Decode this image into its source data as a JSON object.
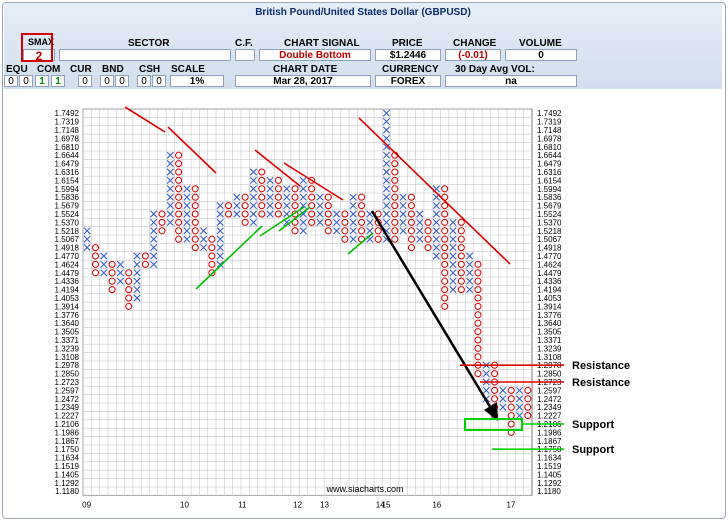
{
  "header": {
    "title": "British Pound/United States Dollar (GBPUSD)",
    "row1": {
      "smax": "SMAX",
      "sector": "SECTOR",
      "cf": "C.F.",
      "chart_signal": "CHART SIGNAL",
      "price": "PRICE",
      "change": "CHANGE",
      "volume": "VOLUME"
    },
    "row2": {
      "smax": "2",
      "sector": "",
      "chart_signal": "Double Bottom",
      "price": "$1.2446",
      "change": "(-0.01)",
      "volume": "0"
    },
    "row3": {
      "equ": "EQU",
      "com": "COM",
      "cur": "CUR",
      "bnd": "BND",
      "csh": "CSH",
      "scale": "SCALE",
      "chart_date": "CHART DATE",
      "currency": "CURRENCY",
      "avg_vol": "30 Day Avg VOL:"
    },
    "row4": {
      "equ": [
        "0",
        "0"
      ],
      "com": [
        "1",
        "1"
      ],
      "cur": "0",
      "bnd": [
        "0",
        "0"
      ],
      "csh": [
        "0",
        "0"
      ],
      "scale": "1%",
      "chart_date": "Mar 28, 2017",
      "currency": "FOREX",
      "avg_vol": "na"
    }
  },
  "chart_data": {
    "type": "point-and-figure",
    "title": "British Pound/United States Dollar (GBPUSD)",
    "scale": "1%",
    "y_levels": [
      "1.7492",
      "1.7319",
      "1.7148",
      "1.6978",
      "1.6810",
      "1.6644",
      "1.6479",
      "1.6316",
      "1.6154",
      "1.5994",
      "1.5836",
      "1.5679",
      "1.5524",
      "1.5370",
      "1.5218",
      "1.5067",
      "1.4918",
      "1.4770",
      "1.4624",
      "1.4479",
      "1.4336",
      "1.4194",
      "1.4053",
      "1.3914",
      "1.3776",
      "1.3640",
      "1.3505",
      "1.3371",
      "1.3239",
      "1.3108",
      "1.2978",
      "1.2850",
      "1.2723",
      "1.2597",
      "1.2472",
      "1.2349",
      "1.2227",
      "1.2106",
      "1.1986",
      "1.1867",
      "1.1750",
      "1.1634",
      "1.1519",
      "1.1405",
      "1.1292",
      "1.1180"
    ],
    "x_labels": [
      "09",
      "10",
      "11",
      "12",
      "13",
      "14",
      "15",
      "16",
      "17"
    ],
    "columns": [
      {
        "type": "X",
        "from": 1.4918,
        "to": 1.5218
      },
      {
        "type": "O",
        "from": 1.4479,
        "to": 1.4918
      },
      {
        "type": "X",
        "from": 1.4479,
        "to": 1.477
      },
      {
        "type": "O",
        "from": 1.4194,
        "to": 1.4624
      },
      {
        "type": "X",
        "from": 1.4336,
        "to": 1.4624
      },
      {
        "type": "O",
        "from": 1.3914,
        "to": 1.4479
      },
      {
        "type": "X",
        "from": 1.4053,
        "to": 1.477
      },
      {
        "type": "O",
        "from": 1.4624,
        "to": 1.477
      },
      {
        "type": "X",
        "from": 1.4624,
        "to": 1.5524
      },
      {
        "type": "O",
        "from": 1.5218,
        "to": 1.5524
      },
      {
        "type": "X",
        "from": 1.537,
        "to": 1.6644
      },
      {
        "type": "O",
        "from": 1.5067,
        "to": 1.6644
      },
      {
        "type": "X",
        "from": 1.5067,
        "to": 1.5994
      },
      {
        "type": "O",
        "from": 1.4918,
        "to": 1.5994
      },
      {
        "type": "X",
        "from": 1.4918,
        "to": 1.5218
      },
      {
        "type": "O",
        "from": 1.4479,
        "to": 1.5067
      },
      {
        "type": "X",
        "from": 1.4624,
        "to": 1.5679
      },
      {
        "type": "O",
        "from": 1.5524,
        "to": 1.5679
      },
      {
        "type": "X",
        "from": 1.5524,
        "to": 1.5836
      },
      {
        "type": "O",
        "from": 1.537,
        "to": 1.5836
      },
      {
        "type": "X",
        "from": 1.537,
        "to": 1.6316
      },
      {
        "type": "O",
        "from": 1.5524,
        "to": 1.6316
      },
      {
        "type": "X",
        "from": 1.5524,
        "to": 1.6154
      },
      {
        "type": "O",
        "from": 1.5524,
        "to": 1.6154
      },
      {
        "type": "X",
        "from": 1.537,
        "to": 1.5994
      },
      {
        "type": "O",
        "from": 1.5218,
        "to": 1.5994
      },
      {
        "type": "X",
        "from": 1.5218,
        "to": 1.6154
      },
      {
        "type": "O",
        "from": 1.537,
        "to": 1.6154
      },
      {
        "type": "X",
        "from": 1.537,
        "to": 1.5836
      },
      {
        "type": "O",
        "from": 1.5218,
        "to": 1.5836
      },
      {
        "type": "X",
        "from": 1.5218,
        "to": 1.5524
      },
      {
        "type": "O",
        "from": 1.5067,
        "to": 1.5524
      },
      {
        "type": "X",
        "from": 1.5067,
        "to": 1.5836
      },
      {
        "type": "O",
        "from": 1.5067,
        "to": 1.5836
      },
      {
        "type": "X",
        "from": 1.5067,
        "to": 1.5524
      },
      {
        "type": "O",
        "from": 1.5067,
        "to": 1.5524
      },
      {
        "type": "X",
        "from": 1.5067,
        "to": 1.7492
      },
      {
        "type": "O",
        "from": 1.5067,
        "to": 1.6644
      },
      {
        "type": "X",
        "from": 1.5218,
        "to": 1.5836
      },
      {
        "type": "O",
        "from": 1.4918,
        "to": 1.5836
      },
      {
        "type": "X",
        "from": 1.5067,
        "to": 1.5524
      },
      {
        "type": "O",
        "from": 1.4918,
        "to": 1.537
      },
      {
        "type": "X",
        "from": 1.477,
        "to": 1.5994
      },
      {
        "type": "O",
        "from": 1.3914,
        "to": 1.5994
      },
      {
        "type": "X",
        "from": 1.4194,
        "to": 1.537
      },
      {
        "type": "O",
        "from": 1.4194,
        "to": 1.537
      },
      {
        "type": "X",
        "from": 1.4194,
        "to": 1.477
      },
      {
        "type": "O",
        "from": 1.285,
        "to": 1.4624
      },
      {
        "type": "X",
        "from": 1.2472,
        "to": 1.2978
      },
      {
        "type": "O",
        "from": 1.2227,
        "to": 1.2978
      },
      {
        "type": "X",
        "from": 1.2349,
        "to": 1.2597
      },
      {
        "type": "O",
        "from": 1.1986,
        "to": 1.2597
      },
      {
        "type": "X",
        "from": 1.2227,
        "to": 1.2597
      },
      {
        "type": "O",
        "from": 1.2227,
        "to": 1.2597
      }
    ],
    "resistance": [
      1.2978,
      1.2723
    ],
    "support": [
      1.2106,
      1.175
    ],
    "annotations": {
      "resistance_label": "Resistance",
      "support_label": "Support",
      "watermark": "www.siacharts.com"
    }
  }
}
